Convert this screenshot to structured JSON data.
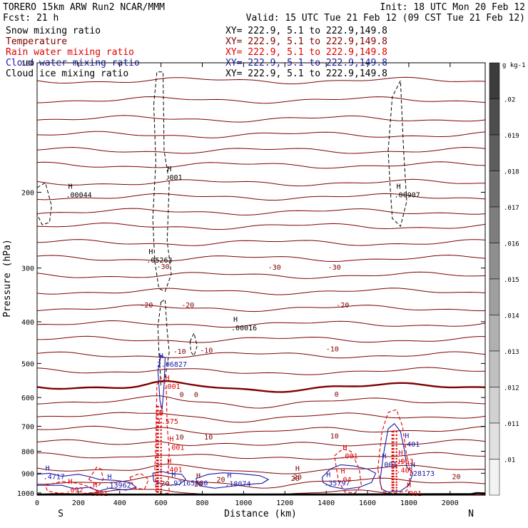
{
  "header": {
    "model": "TORERO  15km ARW   Run2     NCAR/MMM",
    "init": "Init: 18 UTC Mon 20 Feb 12",
    "fcst": "Fcst:    21 h",
    "valid": "Valid: 15 UTC Tue 21 Feb 12 (09 CST Tue 21 Feb 12)"
  },
  "legend": [
    {
      "label": "Snow mixing ratio",
      "xy": "XY= 222.9,  5.1 to 222.9,149.8",
      "color": "#000000"
    },
    {
      "label": "Temperature",
      "xy": "XY= 222.9,  5.1 to 222.9,149.8",
      "color": "#800000"
    },
    {
      "label": "Rain water mixing ratio",
      "xy": "XY= 222.9,  5.1 to 222.9,149.8",
      "color": "#e00000"
    },
    {
      "label": "Cloud water mixing ratio",
      "xy": "XY= 222.9,  5.1 to 222.9,149.8",
      "color": "#1a1aaa"
    },
    {
      "label": "Cloud ice mixing ratio",
      "xy": "XY= 222.9,  5.1 to 222.9,149.8",
      "color": "#000000"
    }
  ],
  "colors": {
    "temperature": "#800000",
    "rain": "#e00000",
    "cloud_water": "#1a1aaa",
    "snow_ice": "#000000",
    "terrain": "#000000"
  },
  "chart_data": {
    "type": "cross-section",
    "xlabel": "Distance (km)",
    "ylabel": "Pressure (hPa)",
    "xlim": [
      0,
      2170
    ],
    "ylim": [
      1012,
      100
    ],
    "y_scale": "log",
    "xticks": [
      0,
      200,
      400,
      600,
      800,
      1000,
      1200,
      1400,
      1600,
      1800,
      2000
    ],
    "yticks": [
      100,
      200,
      300,
      400,
      500,
      600,
      700,
      800,
      900,
      1000
    ],
    "direction_labels": {
      "left": "S",
      "right": "N"
    },
    "temperature_contour_labels": [
      {
        "text": "-30",
        "x": 610,
        "p": 297
      },
      {
        "text": "-30",
        "x": 1150,
        "p": 298
      },
      {
        "text": "-30",
        "x": 1440,
        "p": 298
      },
      {
        "text": "-20",
        "x": 530,
        "p": 365
      },
      {
        "text": "-20",
        "x": 730,
        "p": 365
      },
      {
        "text": "-20",
        "x": 1480,
        "p": 365
      },
      {
        "text": "-10",
        "x": 690,
        "p": 468
      },
      {
        "text": "-10",
        "x": 820,
        "p": 465
      },
      {
        "text": "-10",
        "x": 1430,
        "p": 462
      },
      {
        "text": "0",
        "x": 700,
        "p": 590
      },
      {
        "text": "0",
        "x": 770,
        "p": 590
      },
      {
        "text": "0",
        "x": 1450,
        "p": 588
      },
      {
        "text": "10",
        "x": 690,
        "p": 740
      },
      {
        "text": "10",
        "x": 830,
        "p": 740
      },
      {
        "text": "10",
        "x": 1440,
        "p": 735
      },
      {
        "text": "20",
        "x": 890,
        "p": 928
      },
      {
        "text": "20",
        "x": 1250,
        "p": 923
      },
      {
        "text": "20",
        "x": 2030,
        "p": 915
      },
      {
        "text": "20",
        "x": 620,
        "p": 948
      }
    ],
    "extrema_labels": [
      {
        "text": ".00044",
        "x": 140,
        "p": 203,
        "color": "#000000"
      },
      {
        "text": ".001",
        "x": 620,
        "p": 185,
        "color": "#000000"
      },
      {
        "text": ".05263",
        "x": 530,
        "p": 288,
        "color": "#000000"
      },
      {
        "text": ".00016",
        "x": 940,
        "p": 414,
        "color": "#000000"
      },
      {
        "text": ".00907",
        "x": 1730,
        "p": 203,
        "color": "#000000"
      },
      {
        "text": "2.06827",
        "x": 580,
        "p": 503,
        "color": "#1a1aaa"
      },
      {
        "text": ".001",
        "x": 610,
        "p": 566,
        "color": "#e00000"
      },
      {
        "text": "1.575",
        "x": 580,
        "p": 683,
        "color": "#e00000"
      },
      {
        "text": ".001",
        "x": 630,
        "p": 785,
        "color": "#e00000"
      },
      {
        "text": ".401",
        "x": 620,
        "p": 883,
        "color": "#e00000"
      },
      {
        "text": ".4717",
        "x": 30,
        "p": 918,
        "color": "#1a1aaa"
      },
      {
        "text": ".13962",
        "x": 330,
        "p": 962,
        "color": "#1a1aaa"
      },
      {
        "text": ".092",
        "x": 140,
        "p": 985,
        "color": "#e00000"
      },
      {
        "text": ".001",
        "x": 260,
        "p": 1004,
        "color": "#e00000"
      },
      {
        "text": ".97165680",
        "x": 640,
        "p": 950,
        "color": "#1a1aaa"
      },
      {
        "text": "20",
        "x": 760,
        "p": 955,
        "color": "#800000"
      },
      {
        "text": ".18074",
        "x": 910,
        "p": 953,
        "color": "#1a1aaa"
      },
      {
        "text": "20",
        "x": 1240,
        "p": 920,
        "color": "#800000"
      },
      {
        "text": ".35797",
        "x": 1390,
        "p": 950,
        "color": "#1a1aaa"
      },
      {
        "text": ".04",
        "x": 1460,
        "p": 932,
        "color": "#e00000"
      },
      {
        "text": ".001",
        "x": 1470,
        "p": 822,
        "color": "#e00000"
      },
      {
        "text": ".401",
        "x": 1770,
        "p": 771,
        "color": "#1a1aaa"
      },
      {
        "text": ".001",
        "x": 1660,
        "p": 860,
        "color": "#1a1aaa"
      },
      {
        "text": ".963",
        "x": 1740,
        "p": 845,
        "color": "#e00000"
      },
      {
        "text": ".401",
        "x": 1740,
        "p": 887,
        "color": "#e00000"
      },
      {
        "text": ".28173",
        "x": 1800,
        "p": 903,
        "color": "#1a1aaa"
      },
      {
        "text": ".001",
        "x": 1780,
        "p": 1004,
        "color": "#e00000"
      }
    ],
    "colorbar": {
      "unit": "g kg-1",
      "ticks": [
        ".02",
        ".019",
        ".018",
        ".017",
        ".016",
        ".015",
        ".014",
        ".013",
        ".012",
        ".011",
        ".01"
      ]
    }
  }
}
